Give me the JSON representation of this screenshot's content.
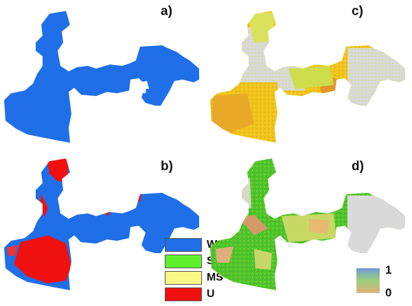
{
  "panels": [
    {
      "label": "a)"
    },
    {
      "label": "b)"
    },
    {
      "label": "c)"
    },
    {
      "label": "d)"
    }
  ],
  "legend_categories": [
    {
      "label": "WS",
      "color": "#1f6fe8"
    },
    {
      "label": "S",
      "color": "#5ef02a"
    },
    {
      "label": "MS",
      "color": "#fbf784"
    },
    {
      "label": "U",
      "color": "#f01010"
    }
  ],
  "color_scale": {
    "max_label": "1",
    "min_label": "0",
    "colors": [
      "#6e9bd6",
      "#9cd07a",
      "#e0b07a"
    ]
  },
  "colors": {
    "ws_blue": "#1f6fe8",
    "suit_yellow": "#f2c51a",
    "green": "#4ec42a",
    "gray": "#d9d9d9",
    "red": "#f01010"
  }
}
